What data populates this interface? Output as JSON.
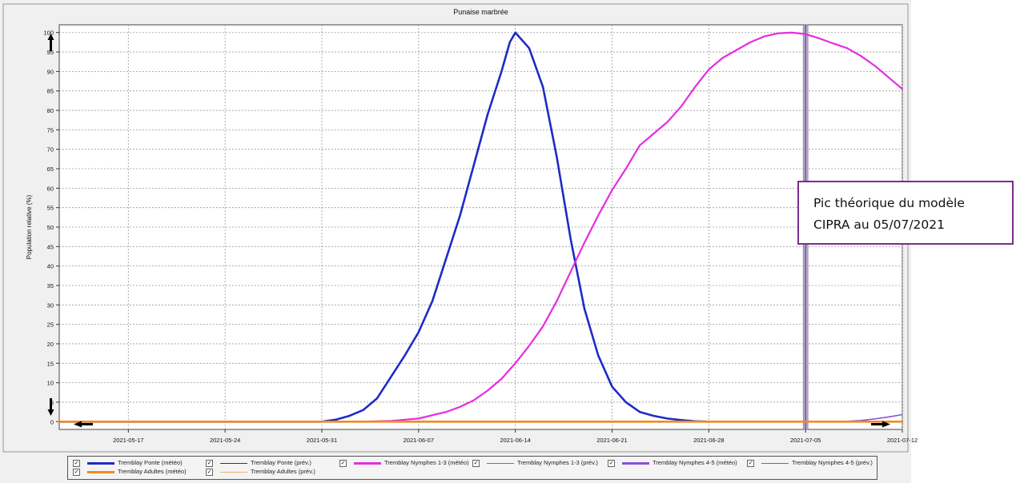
{
  "chart_data": {
    "type": "line",
    "title": "Punaise marbrée",
    "xlabel": "",
    "ylabel": "Population relative (%)",
    "x_ticks": [
      "2021-05-17",
      "2021-05-24",
      "2021-05-31",
      "2021-06-07",
      "2021-06-14",
      "2021-06-21",
      "2021-06-28",
      "2021-07-05",
      "2021-07-12"
    ],
    "x_range": [
      "2021-05-12",
      "2021-07-12"
    ],
    "y_ticks": [
      "0",
      "5",
      "10",
      "15",
      "20",
      "25",
      "30",
      "35",
      "40",
      "45",
      "50",
      "55",
      "60",
      "65",
      "70",
      "75",
      "80",
      "85",
      "90",
      "95",
      "100"
    ],
    "ylim": [
      -2,
      102
    ],
    "grid": true,
    "legend_position": "bottom",
    "marker_date": "2021-07-05",
    "series": [
      {
        "name": "Tremblay Ponte (météo)",
        "color": "#1f2bc4",
        "width": 2.6,
        "points": [
          [
            "2021-05-12",
            0
          ],
          [
            "2021-05-31",
            0
          ],
          [
            "2021-06-01",
            0.5
          ],
          [
            "2021-06-02",
            1.5
          ],
          [
            "2021-06-03",
            3
          ],
          [
            "2021-06-04",
            6
          ],
          [
            "2021-06-05",
            11.5
          ],
          [
            "2021-06-06",
            17
          ],
          [
            "2021-06-07",
            23
          ],
          [
            "2021-06-08",
            31
          ],
          [
            "2021-06-09",
            42
          ],
          [
            "2021-06-10",
            53
          ],
          [
            "2021-06-11",
            66
          ],
          [
            "2021-06-12",
            79
          ],
          [
            "2021-06-13",
            90
          ],
          [
            "2021-06-13.6",
            97.5
          ],
          [
            "2021-06-14",
            100
          ],
          [
            "2021-06-15",
            96
          ],
          [
            "2021-06-16",
            86
          ],
          [
            "2021-06-17",
            68
          ],
          [
            "2021-06-18",
            47
          ],
          [
            "2021-06-19",
            29
          ],
          [
            "2021-06-20",
            17
          ],
          [
            "2021-06-21",
            9
          ],
          [
            "2021-06-22",
            5
          ],
          [
            "2021-06-23",
            2.5
          ],
          [
            "2021-06-24",
            1.5
          ],
          [
            "2021-06-25",
            0.8
          ],
          [
            "2021-06-26",
            0.4
          ],
          [
            "2021-06-27",
            0.1
          ],
          [
            "2021-06-28",
            0
          ]
        ]
      },
      {
        "name": "Tremblay Nymphes 1-3 (météo)",
        "color": "#e62de0",
        "width": 2.2,
        "points": [
          [
            "2021-06-03",
            0
          ],
          [
            "2021-06-05",
            0.2
          ],
          [
            "2021-06-07",
            0.8
          ],
          [
            "2021-06-09",
            2.5
          ],
          [
            "2021-06-10",
            3.8
          ],
          [
            "2021-06-11",
            5.5
          ],
          [
            "2021-06-12",
            8
          ],
          [
            "2021-06-13",
            11
          ],
          [
            "2021-06-14",
            15
          ],
          [
            "2021-06-15",
            19.5
          ],
          [
            "2021-06-16",
            24.5
          ],
          [
            "2021-06-17",
            31
          ],
          [
            "2021-06-18",
            38.5
          ],
          [
            "2021-06-19",
            46
          ],
          [
            "2021-06-20",
            53
          ],
          [
            "2021-06-21",
            59.5
          ],
          [
            "2021-06-22",
            65
          ],
          [
            "2021-06-23",
            71
          ],
          [
            "2021-06-24",
            74
          ],
          [
            "2021-06-25",
            77
          ],
          [
            "2021-06-26",
            81
          ],
          [
            "2021-06-27",
            86
          ],
          [
            "2021-06-28",
            90.5
          ],
          [
            "2021-06-29",
            93.5
          ],
          [
            "2021-06-30",
            95.5
          ],
          [
            "2021-07-01",
            97.5
          ],
          [
            "2021-07-02",
            99
          ],
          [
            "2021-07-03",
            99.8
          ],
          [
            "2021-07-04",
            100
          ],
          [
            "2021-07-05",
            99.6
          ],
          [
            "2021-07-06",
            98.5
          ],
          [
            "2021-07-07",
            97.2
          ],
          [
            "2021-07-08",
            96
          ],
          [
            "2021-07-09",
            94
          ],
          [
            "2021-07-10",
            91.5
          ],
          [
            "2021-07-11",
            88.5
          ],
          [
            "2021-07-12",
            85.5
          ]
        ]
      },
      {
        "name": "Tremblay Nymphes 4-5 (météo)",
        "color": "#8a4fd8",
        "width": 1.6,
        "points": [
          [
            "2021-07-06",
            0
          ],
          [
            "2021-07-08",
            0.1
          ],
          [
            "2021-07-09",
            0.3
          ],
          [
            "2021-07-10",
            0.7
          ],
          [
            "2021-07-11",
            1.2
          ],
          [
            "2021-07-12",
            1.8
          ]
        ]
      },
      {
        "name": "Tremblay Adultes (météo)",
        "color": "#f28a1c",
        "width": 2.6,
        "points": [
          [
            "2021-05-12",
            0
          ],
          [
            "2021-07-12",
            0
          ]
        ]
      }
    ],
    "legend": [
      {
        "label": "Tremblay Ponte (météo)",
        "color": "#1f2bc4",
        "thick": true
      },
      {
        "label": "Tremblay Ponte (prév.)",
        "color": "#1f2bc4",
        "thick": false
      },
      {
        "label": "Tremblay Nymphes 1-3 (météo)",
        "color": "#e62de0",
        "thick": true
      },
      {
        "label": "Tremblay Nymphes 1-3 (prév.)",
        "color": "#e62de0",
        "thick": false
      },
      {
        "label": "Tremblay Nymphes 4-5 (météo)",
        "color": "#8a4fd8",
        "thick": true
      },
      {
        "label": "Tremblay Nymphes 4-5 (prév.)",
        "color": "#8a4fd8",
        "thick": false
      },
      {
        "label": "Tremblay Adultes (météo)",
        "color": "#f28a1c",
        "thick": true
      },
      {
        "label": "Tremblay Adultes (prév.)",
        "color": "#f0b070",
        "thick": false
      }
    ]
  },
  "annotation": {
    "line1": "Pic théorique du modèle",
    "line2": "CIPRA au 05/07/2021"
  },
  "checkbox_glyph": "✓"
}
